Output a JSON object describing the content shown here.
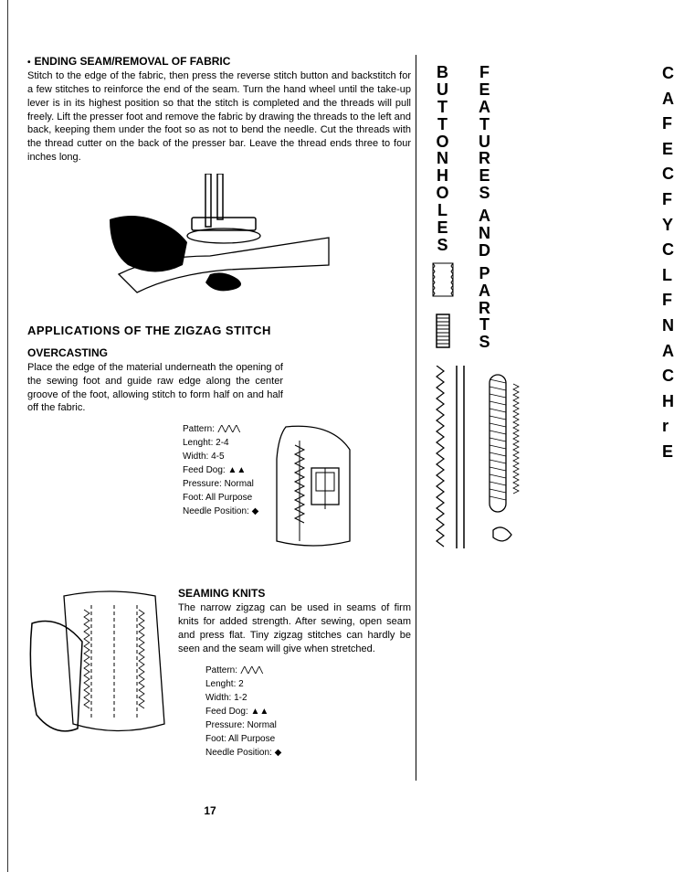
{
  "section1": {
    "title": "ENDING SEAM/REMOVAL OF FABRIC",
    "body": "Stitch to the edge of the fabric, then press the reverse stitch button and backstitch for a few stitches to reinforce the end of the seam. Turn the hand wheel until the take-up lever is in its highest position so that the stitch is completed and the threads will pull freely. Lift the presser foot and remove the fabric by drawing the threads to the left and back, keeping them under the foot so as not to bend the needle. Cut the threads with the thread cutter on the back of the presser bar. Leave the thread ends three to four inches long."
  },
  "mainHeading": "APPLICATIONS OF THE ZIGZAG STITCH",
  "overcasting": {
    "title": "OVERCASTING",
    "body": "Place the edge of the material underneath the opening of the sewing foot and guide raw edge along the center groove of the foot, allowing stitch to form half on and half off the fabric.",
    "settings": {
      "pattern_label": "Pattern:",
      "lenght_label": "Lenght:",
      "lenght_val": "2-4",
      "width_label": "Width:",
      "width_val": "4-5",
      "feed_label": "Feed Dog:",
      "pressure_label": "Pressure:",
      "pressure_val": "Normal",
      "foot_label": "Foot:",
      "foot_val": "All Purpose",
      "needle_label": "Needle Position:"
    }
  },
  "seaming": {
    "title": "SEAMING KNITS",
    "body": "The narrow zigzag can be used in seams of firm knits for added strength. After sewing, open seam and press flat. Tiny zigzag stitches can hardly be seen and the seam will give when stretched.",
    "settings": {
      "pattern_label": "Pattern:",
      "lenght_label": "Lenght:",
      "lenght_val": "2",
      "width_label": "Width:",
      "width_val": "1-2",
      "feed_label": "Feed Dog:",
      "pressure_label": "Pressure:",
      "pressure_val": "Normal",
      "foot_label": "Foot:",
      "foot_val": "All Purpose",
      "needle_label": "Needle Position:"
    }
  },
  "pageNumber": "17",
  "sidebar": {
    "col1": "BUTTONHOLES",
    "col2a": "FEATURES",
    "col2b": "AND",
    "col2c": "PARTS",
    "edge": [
      "C",
      "A",
      "F",
      "E",
      "C",
      "F",
      "Y",
      "C",
      "L",
      "F",
      "N",
      "A",
      "C",
      "H",
      "r",
      "E"
    ]
  },
  "colors": {
    "text": "#000000",
    "bg": "#ffffff",
    "line": "#000000"
  }
}
